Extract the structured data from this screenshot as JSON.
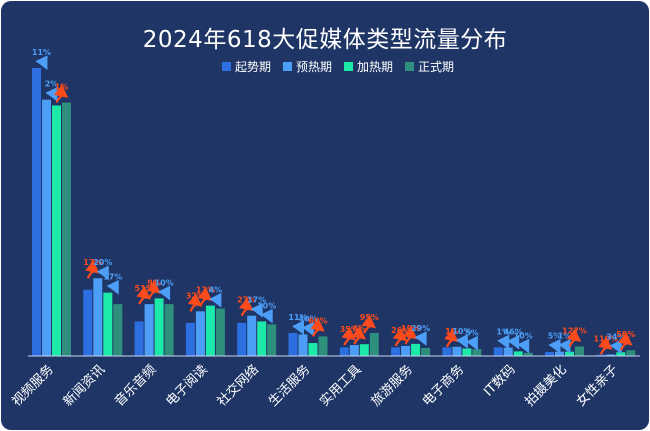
{
  "chart_data": {
    "type": "bar",
    "title": "2024年618大促媒体类型流量分布",
    "xlabel": "",
    "ylabel": "",
    "grid": false,
    "legend_position": "top-center",
    "categories": [
      "视频服务",
      "新闻资讯",
      "音乐音频",
      "电子阅读",
      "社交网络",
      "生活服务",
      "实用工具",
      "旅游服务",
      "电子商务",
      "IT数码",
      "拍摄美化",
      "女性亲子"
    ],
    "series": [
      {
        "name": "起势期",
        "color": "#2d6fe0",
        "values": [
          100,
          23,
          12,
          11.5,
          11.5,
          8,
          3,
          3,
          3,
          3,
          1.4,
          0.45
        ]
      },
      {
        "name": "预热期",
        "color": "#4d9ef7",
        "values": [
          89,
          27,
          18,
          15.5,
          14,
          7.5,
          3.8,
          3.5,
          3.2,
          2.9,
          1.5,
          0.55
        ]
      },
      {
        "name": "加热期",
        "color": "#1de9a8",
        "values": [
          87,
          22,
          20,
          17.5,
          12,
          4.5,
          4.1,
          4.2,
          2.6,
          1.6,
          1.5,
          1.3
        ]
      },
      {
        "name": "正式期",
        "color": "#2e8f7c",
        "values": [
          88,
          18,
          18,
          16.5,
          11,
          6.8,
          8,
          2.8,
          2.4,
          1.1,
          3.3,
          2.0
        ]
      }
    ],
    "ylim": [
      0,
      100
    ],
    "annotations": [
      [
        "11%",
        "2%",
        "1%"
      ],
      [
        "17%",
        "20%",
        "17%"
      ],
      [
        "51%",
        "9%",
        "10%"
      ],
      [
        "32%",
        "13%",
        "4%"
      ],
      [
        "27%",
        "17%",
        "10%"
      ],
      [
        "11%",
        "40%",
        "60%"
      ],
      [
        "35%",
        "6%",
        "95%"
      ],
      [
        "26%",
        "19%",
        "29%"
      ],
      [
        "1%",
        "10%",
        "5%"
      ],
      [
        "1%",
        "46%",
        "10%"
      ],
      [
        "5%",
        "1%",
        "127%"
      ],
      [
        "110%",
        "34%",
        "58%"
      ]
    ],
    "annotation_directions": [
      [
        "down",
        "down",
        "up"
      ],
      [
        "up",
        "down",
        "down"
      ],
      [
        "up",
        "up",
        "down"
      ],
      [
        "up",
        "up",
        "down"
      ],
      [
        "up",
        "down",
        "down"
      ],
      [
        "down",
        "down",
        "up"
      ],
      [
        "up",
        "up",
        "up"
      ],
      [
        "up",
        "up",
        "down"
      ],
      [
        "up",
        "down",
        "down"
      ],
      [
        "down",
        "down",
        "down"
      ],
      [
        "down",
        "down",
        "up"
      ],
      [
        "up",
        "down",
        "up"
      ]
    ],
    "annotation_colors": {
      "up": "#ff4a1c",
      "down": "#4d9ef7"
    }
  }
}
